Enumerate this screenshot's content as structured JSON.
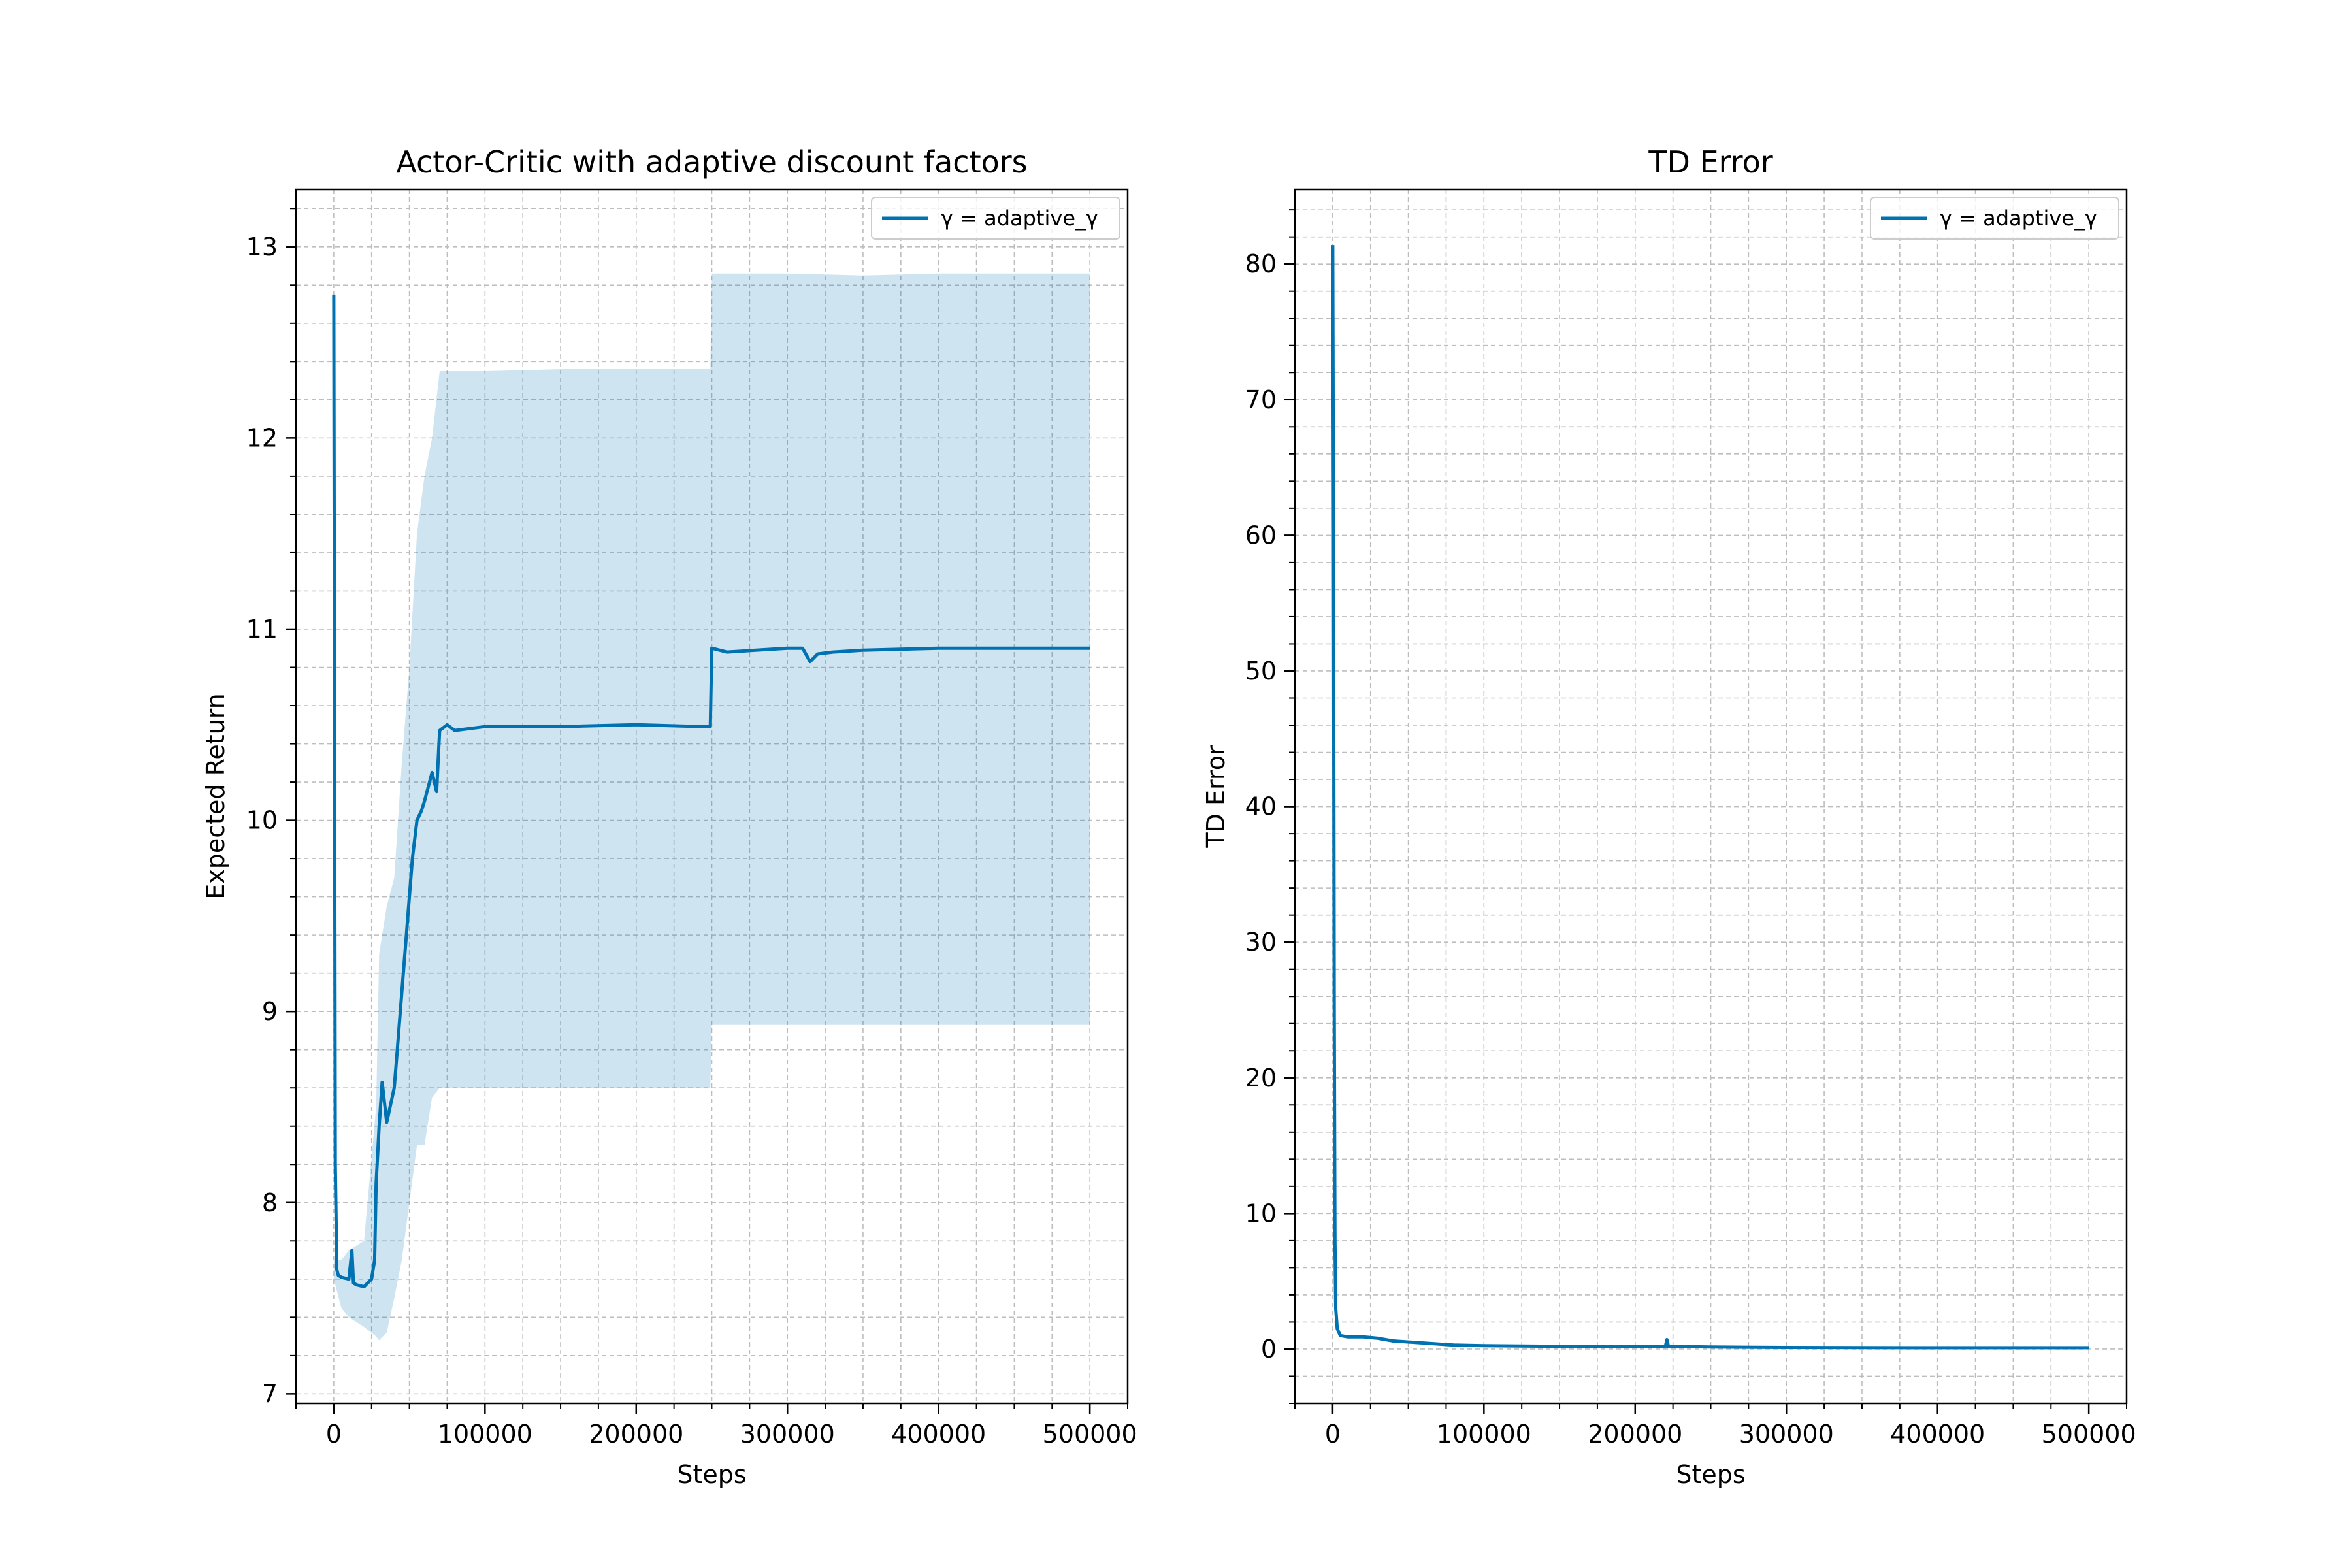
{
  "chart_data": [
    {
      "type": "line",
      "title": "Actor-Critic with adaptive discount factors",
      "xlabel": "Steps",
      "ylabel": "Expected Return",
      "xlim": [
        -25000,
        525000
      ],
      "ylim": [
        6.95,
        13.3
      ],
      "xticks": [
        0,
        100000,
        200000,
        300000,
        400000,
        500000
      ],
      "xtick_labels": [
        "0",
        "100000",
        "200000",
        "300000",
        "400000",
        "500000"
      ],
      "yticks": [
        7,
        8,
        9,
        10,
        11,
        12,
        13
      ],
      "ytick_labels": [
        "7",
        "8",
        "9",
        "10",
        "11",
        "12",
        "13"
      ],
      "grid": true,
      "legend": "upper right",
      "series": [
        {
          "name": "γ = adaptive_γ",
          "color": "#0072B2",
          "x": [
            0,
            1000,
            2000,
            3000,
            5000,
            10000,
            12000,
            13000,
            15000,
            20000,
            25000,
            27000,
            28000,
            30000,
            32000,
            35000,
            40000,
            42000,
            45000,
            48000,
            50000,
            52000,
            55000,
            58000,
            60000,
            65000,
            68000,
            70000,
            75000,
            80000,
            100000,
            150000,
            200000,
            245000,
            249000,
            250000,
            260000,
            300000,
            310000,
            315000,
            320000,
            330000,
            350000,
            400000,
            450000,
            500000
          ],
          "y": [
            12.75,
            8.2,
            7.65,
            7.62,
            7.61,
            7.6,
            7.75,
            7.58,
            7.57,
            7.56,
            7.6,
            7.7,
            8.1,
            8.4,
            8.63,
            8.42,
            8.6,
            8.8,
            9.1,
            9.4,
            9.6,
            9.8,
            10.0,
            10.05,
            10.1,
            10.25,
            10.15,
            10.47,
            10.5,
            10.47,
            10.49,
            10.49,
            10.5,
            10.49,
            10.49,
            10.9,
            10.88,
            10.9,
            10.9,
            10.83,
            10.87,
            10.88,
            10.89,
            10.9,
            10.9,
            10.9
          ],
          "band": {
            "x": [
              0,
              5000,
              10000,
              20000,
              28000,
              30000,
              35000,
              40000,
              45000,
              50000,
              55000,
              60000,
              65000,
              70000,
              80000,
              100000,
              150000,
              200000,
              249000,
              250000,
              300000,
              350000,
              400000,
              450000,
              500000
            ],
            "lower": [
              7.6,
              7.45,
              7.4,
              7.35,
              7.3,
              7.28,
              7.32,
              7.5,
              7.7,
              8.0,
              8.3,
              8.3,
              8.55,
              8.6,
              8.6,
              8.6,
              8.6,
              8.6,
              8.6,
              8.93,
              8.93,
              8.93,
              8.93,
              8.93,
              8.93
            ],
            "upper": [
              7.7,
              7.7,
              7.75,
              7.8,
              8.5,
              9.3,
              9.55,
              9.7,
              10.3,
              10.8,
              11.5,
              11.8,
              12.0,
              12.35,
              12.35,
              12.35,
              12.36,
              12.36,
              12.36,
              12.86,
              12.86,
              12.85,
              12.86,
              12.86,
              12.86
            ]
          }
        }
      ]
    },
    {
      "type": "line",
      "title": "TD Error",
      "xlabel": "Steps",
      "ylabel": "TD Error",
      "xlim": [
        -25000,
        525000
      ],
      "ylim": [
        -4,
        85.5
      ],
      "xticks": [
        0,
        100000,
        200000,
        300000,
        400000,
        500000
      ],
      "xtick_labels": [
        "0",
        "100000",
        "200000",
        "300000",
        "400000",
        "500000"
      ],
      "yticks": [
        0,
        10,
        20,
        30,
        40,
        50,
        60,
        70,
        80
      ],
      "ytick_labels": [
        "0",
        "10",
        "20",
        "30",
        "40",
        "50",
        "60",
        "70",
        "80"
      ],
      "grid": true,
      "legend": "upper right",
      "series": [
        {
          "name": "γ = adaptive_γ",
          "color": "#0072B2",
          "x": [
            0,
            500,
            1000,
            1500,
            2000,
            3000,
            5000,
            10000,
            20000,
            30000,
            40000,
            60000,
            80000,
            100000,
            150000,
            200000,
            220000,
            221000,
            222000,
            250000,
            300000,
            400000,
            500000
          ],
          "y": [
            81.4,
            60,
            25,
            8,
            3,
            1.5,
            1.0,
            0.9,
            0.9,
            0.8,
            0.6,
            0.45,
            0.3,
            0.25,
            0.2,
            0.18,
            0.2,
            0.7,
            0.2,
            0.15,
            0.12,
            0.1,
            0.1
          ]
        }
      ]
    }
  ]
}
